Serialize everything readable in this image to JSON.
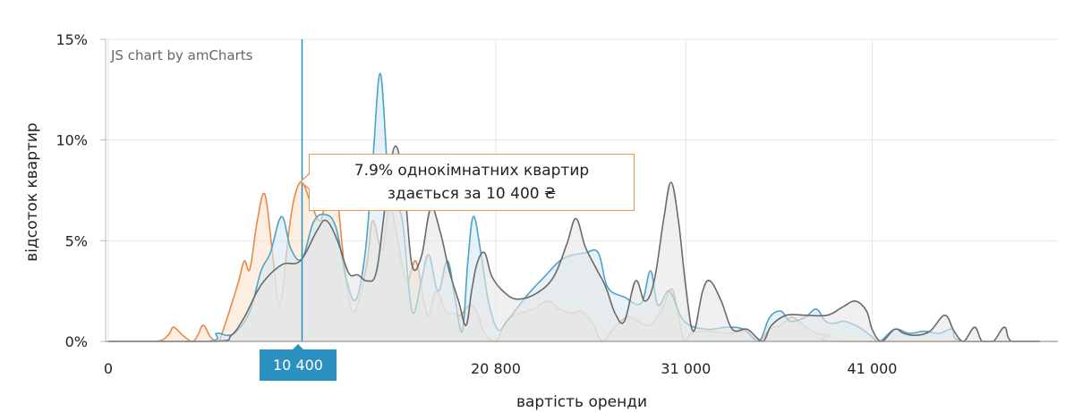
{
  "chart_data": {
    "type": "area",
    "credit": "JS chart by amCharts",
    "xlabel": "вартість оренди",
    "ylabel": "відсоток квартир",
    "xlim": [
      0,
      50000
    ],
    "ylim": [
      0,
      15
    ],
    "y_ticks": [
      {
        "value": 0,
        "label": "0%"
      },
      {
        "value": 5,
        "label": "5%"
      },
      {
        "value": 10,
        "label": "10%"
      },
      {
        "value": 15,
        "label": "15%"
      }
    ],
    "x_ticks": [
      {
        "value": 0,
        "label": "0"
      },
      {
        "value": 20800,
        "label": "20 800"
      },
      {
        "value": 31000,
        "label": "31 000"
      },
      {
        "value": 41000,
        "label": "41 000"
      }
    ],
    "grid": true,
    "cursor": {
      "x": 10400,
      "label": "10 400"
    },
    "tooltip": {
      "line1": "7.9% однокімнатних квартир",
      "line2": "здається за 10 400 ₴"
    },
    "series": [
      {
        "color": "#e8894a",
        "fill": "#fbe3cf",
        "points": [
          [
            0,
            0
          ],
          [
            2500,
            0
          ],
          [
            3200,
            0.3
          ],
          [
            3500,
            0.7
          ],
          [
            4000,
            0.3
          ],
          [
            4500,
            0
          ],
          [
            4800,
            0.3
          ],
          [
            5100,
            0.8
          ],
          [
            5500,
            0.2
          ],
          [
            5900,
            0
          ],
          [
            6100,
            0.4
          ],
          [
            6500,
            1.5
          ],
          [
            7000,
            3
          ],
          [
            7300,
            4
          ],
          [
            7600,
            3.6
          ],
          [
            8000,
            6
          ],
          [
            8400,
            7.3
          ],
          [
            8800,
            4.5
          ],
          [
            9200,
            1.8
          ],
          [
            9700,
            5.5
          ],
          [
            10000,
            7.2
          ],
          [
            10400,
            7.9
          ],
          [
            10900,
            6.8
          ],
          [
            11400,
            6
          ],
          [
            11800,
            7.7
          ],
          [
            12200,
            7.8
          ],
          [
            12700,
            3.5
          ],
          [
            13100,
            1.5
          ],
          [
            13500,
            2.2
          ],
          [
            13900,
            4
          ],
          [
            14200,
            6
          ],
          [
            14700,
            4.5
          ],
          [
            15100,
            6.8
          ],
          [
            15500,
            5.2
          ],
          [
            16000,
            3
          ],
          [
            16500,
            4
          ],
          [
            16900,
            2.2
          ],
          [
            17200,
            1.3
          ],
          [
            17600,
            2.5
          ],
          [
            18100,
            1.5
          ],
          [
            18500,
            1.4
          ],
          [
            18900,
            1.3
          ],
          [
            19400,
            1.8
          ],
          [
            19800,
            1.4
          ],
          [
            20200,
            0.4
          ],
          [
            20800,
            0
          ],
          [
            21300,
            0.9
          ],
          [
            21800,
            1.3
          ],
          [
            22800,
            1.6
          ],
          [
            23600,
            2
          ],
          [
            24200,
            1.6
          ],
          [
            24900,
            1.4
          ],
          [
            25400,
            1.5
          ],
          [
            26000,
            0.9
          ],
          [
            26500,
            0
          ],
          [
            27000,
            0.5
          ],
          [
            27500,
            1
          ],
          [
            28000,
            1.2
          ],
          [
            29000,
            0.8
          ],
          [
            29700,
            1.6
          ],
          [
            30200,
            2.6
          ],
          [
            30500,
            1.8
          ],
          [
            30900,
            0
          ],
          [
            31300,
            0.4
          ],
          [
            32200,
            0.5
          ],
          [
            33300,
            0.4
          ],
          [
            34200,
            0.5
          ],
          [
            34900,
            0
          ],
          [
            35500,
            0.6
          ],
          [
            36100,
            0.8
          ],
          [
            36700,
            1.2
          ],
          [
            37300,
            0.8
          ],
          [
            38000,
            0.4
          ],
          [
            38700,
            0.3
          ],
          [
            39300,
            0
          ],
          [
            50000,
            0
          ]
        ]
      },
      {
        "color": "#4ba3c9",
        "fill": "#d6e9f2",
        "points": [
          [
            0,
            0
          ],
          [
            5300,
            0
          ],
          [
            5800,
            0.4
          ],
          [
            6400,
            0.3
          ],
          [
            6900,
            0.5
          ],
          [
            7600,
            1.5
          ],
          [
            8200,
            3.5
          ],
          [
            8700,
            4.4
          ],
          [
            9300,
            6.2
          ],
          [
            9800,
            4.6
          ],
          [
            10400,
            4.1
          ],
          [
            11000,
            5.9
          ],
          [
            11600,
            6.3
          ],
          [
            12200,
            5.7
          ],
          [
            12800,
            3
          ],
          [
            13300,
            2.1
          ],
          [
            13800,
            4.5
          ],
          [
            14200,
            9
          ],
          [
            14600,
            13.3
          ],
          [
            15000,
            8.5
          ],
          [
            15400,
            6.8
          ],
          [
            15800,
            5.9
          ],
          [
            16300,
            1.5
          ],
          [
            16800,
            3
          ],
          [
            17200,
            4.3
          ],
          [
            17700,
            2.5
          ],
          [
            18200,
            4
          ],
          [
            18600,
            2.2
          ],
          [
            19000,
            0.5
          ],
          [
            19300,
            4
          ],
          [
            19600,
            6.2
          ],
          [
            20000,
            4.4
          ],
          [
            20400,
            2
          ],
          [
            20900,
            0.6
          ],
          [
            21400,
            1
          ],
          [
            22400,
            2.2
          ],
          [
            23400,
            3.2
          ],
          [
            24400,
            4.1
          ],
          [
            25600,
            4.4
          ],
          [
            26300,
            4.4
          ],
          [
            26800,
            2.7
          ],
          [
            27700,
            2.2
          ],
          [
            28600,
            1.9
          ],
          [
            29100,
            3.5
          ],
          [
            29500,
            1.8
          ],
          [
            30100,
            2.5
          ],
          [
            30700,
            1.3
          ],
          [
            31200,
            0.8
          ],
          [
            32200,
            0.6
          ],
          [
            33200,
            0.7
          ],
          [
            34100,
            0.6
          ],
          [
            34900,
            0
          ],
          [
            35500,
            1.2
          ],
          [
            36100,
            1.5
          ],
          [
            36600,
            1
          ],
          [
            37400,
            1.2
          ],
          [
            38000,
            1.6
          ],
          [
            38500,
            1
          ],
          [
            39000,
            0.9
          ],
          [
            39500,
            1
          ],
          [
            40300,
            0.7
          ],
          [
            40900,
            0.3
          ],
          [
            41400,
            0
          ],
          [
            42200,
            0.6
          ],
          [
            43000,
            0.4
          ],
          [
            43800,
            0.5
          ],
          [
            44600,
            0.4
          ],
          [
            45300,
            0.6
          ],
          [
            45900,
            0
          ],
          [
            50000,
            0
          ]
        ]
      },
      {
        "color": "#6a6a6a",
        "fill": "#e6e6e6",
        "points": [
          [
            0,
            0
          ],
          [
            5700,
            0
          ],
          [
            6600,
            0.3
          ],
          [
            7300,
            1.2
          ],
          [
            8200,
            2.8
          ],
          [
            9300,
            3.8
          ],
          [
            10300,
            4
          ],
          [
            11200,
            5.5
          ],
          [
            11700,
            6
          ],
          [
            12300,
            5
          ],
          [
            12900,
            3.4
          ],
          [
            13400,
            3.3
          ],
          [
            13900,
            3
          ],
          [
            14400,
            3.5
          ],
          [
            14900,
            7
          ],
          [
            15400,
            9.7
          ],
          [
            15900,
            7.5
          ],
          [
            16300,
            3.8
          ],
          [
            16800,
            4.2
          ],
          [
            17300,
            6.6
          ],
          [
            17800,
            5.5
          ],
          [
            18300,
            3.5
          ],
          [
            18800,
            2
          ],
          [
            19200,
            0.8
          ],
          [
            19500,
            2.5
          ],
          [
            19800,
            3.9
          ],
          [
            20200,
            4.4
          ],
          [
            20600,
            3.2
          ],
          [
            21300,
            2.4
          ],
          [
            22000,
            2.1
          ],
          [
            23000,
            2.4
          ],
          [
            23900,
            3.2
          ],
          [
            24600,
            4.8
          ],
          [
            25100,
            6.1
          ],
          [
            25600,
            4.7
          ],
          [
            26200,
            3.6
          ],
          [
            26700,
            2.7
          ],
          [
            27200,
            1.4
          ],
          [
            27700,
            1
          ],
          [
            28300,
            3
          ],
          [
            28800,
            2
          ],
          [
            29300,
            3
          ],
          [
            29800,
            6
          ],
          [
            30200,
            7.9
          ],
          [
            30600,
            6
          ],
          [
            31000,
            2.7
          ],
          [
            31400,
            0.5
          ],
          [
            31900,
            2.5
          ],
          [
            32300,
            3
          ],
          [
            32900,
            2
          ],
          [
            33500,
            0.6
          ],
          [
            34300,
            0.6
          ],
          [
            35100,
            0
          ],
          [
            35600,
            0.8
          ],
          [
            36400,
            1.3
          ],
          [
            37400,
            1.3
          ],
          [
            38600,
            1.3
          ],
          [
            39400,
            1.7
          ],
          [
            40100,
            2
          ],
          [
            40700,
            1.5
          ],
          [
            41000,
            0.6
          ],
          [
            41500,
            0
          ],
          [
            42200,
            0.6
          ],
          [
            42700,
            0.4
          ],
          [
            43300,
            0.3
          ],
          [
            44100,
            0.5
          ],
          [
            44900,
            1.3
          ],
          [
            45400,
            0.5
          ],
          [
            45900,
            0
          ],
          [
            46500,
            0.7
          ],
          [
            46900,
            0
          ],
          [
            47500,
            0
          ],
          [
            48100,
            0.7
          ],
          [
            48500,
            0
          ],
          [
            50000,
            0
          ]
        ]
      }
    ]
  }
}
